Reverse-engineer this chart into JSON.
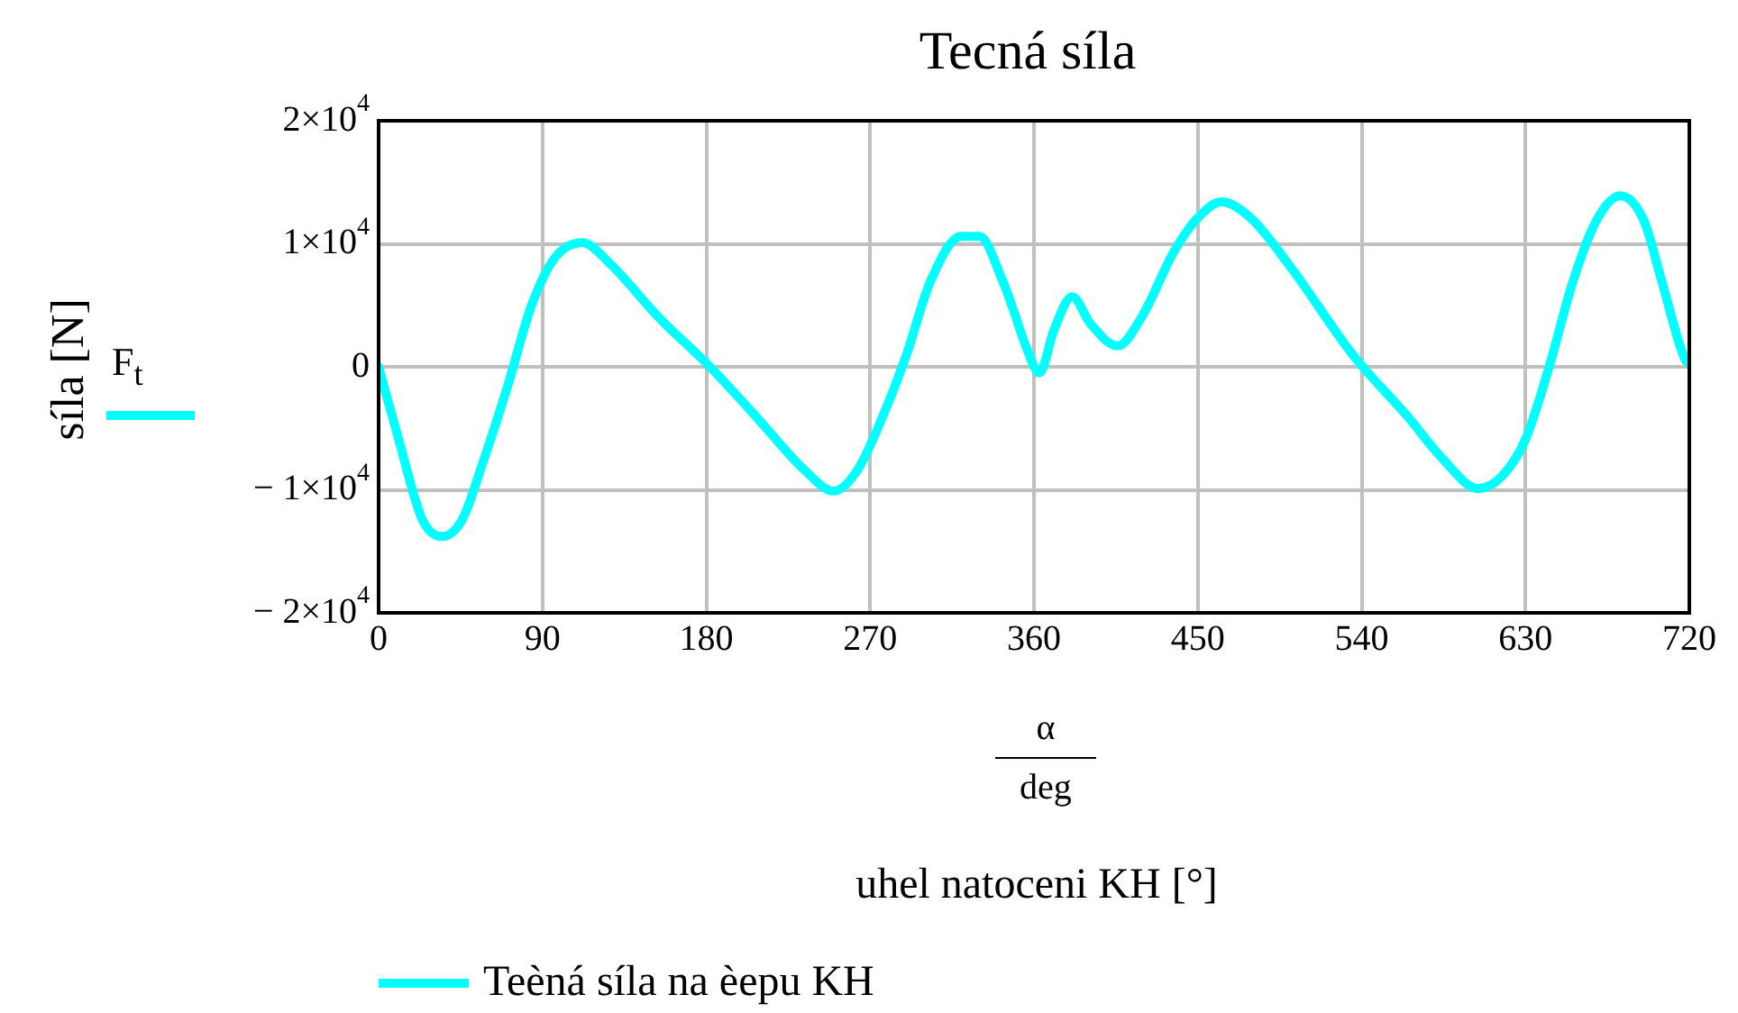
{
  "chart_data": {
    "type": "line",
    "title": "Tecná síla",
    "xlabel": "uhel natoceni KH [°]",
    "ylabel": "síla [N]",
    "annotations": [
      "α",
      "deg",
      "F$_{t}$"
    ],
    "x": [
      0,
      11,
      24,
      35,
      46,
      57,
      71,
      84,
      97,
      112,
      127,
      154,
      182,
      207,
      234,
      250,
      263,
      277,
      290,
      303,
      320,
      330,
      343,
      348.5,
      356,
      363,
      371,
      381,
      391,
      406,
      419,
      437,
      450,
      463,
      479,
      502,
      535,
      565,
      584,
      604,
      617,
      630,
      643,
      656,
      669,
      682,
      695,
      705,
      718,
      720
    ],
    "series": [
      {
        "name": "Teèná síla na èepu KH",
        "color": "#00ffff",
        "values": [
          0,
          -5900,
          -12400,
          -13800,
          -12400,
          -7900,
          -1500,
          5000,
          8900,
          10100,
          8400,
          4000,
          0,
          -4000,
          -8400,
          -10100,
          -8400,
          -4000,
          1000,
          6900,
          10600,
          10600,
          6900,
          4700,
          1500,
          -500,
          3000,
          5700,
          3500,
          1700,
          4000,
          9400,
          12100,
          13400,
          12100,
          7900,
          1000,
          -4000,
          -7400,
          -9900,
          -8900,
          -5900,
          0,
          6900,
          11900,
          13900,
          11900,
          6900,
          500,
          300
        ]
      }
    ],
    "xlim": [
      0,
      720
    ],
    "xticks": [
      0,
      90,
      180,
      270,
      360,
      450,
      540,
      630,
      720
    ],
    "ylim": [
      -20000,
      20000
    ],
    "yticks": [
      {
        "value": -20000,
        "label": "− 2×10$^{4}$"
      },
      {
        "value": -10000,
        "label": "− 1×10$^{4}$"
      },
      0,
      {
        "value": 10000,
        "label": "1×10$^{4}$"
      },
      {
        "value": 20000,
        "label": "2×10$^{4}$"
      }
    ],
    "grid": true,
    "legend": "bottom",
    "marker": "none",
    "line_style": "solid"
  }
}
